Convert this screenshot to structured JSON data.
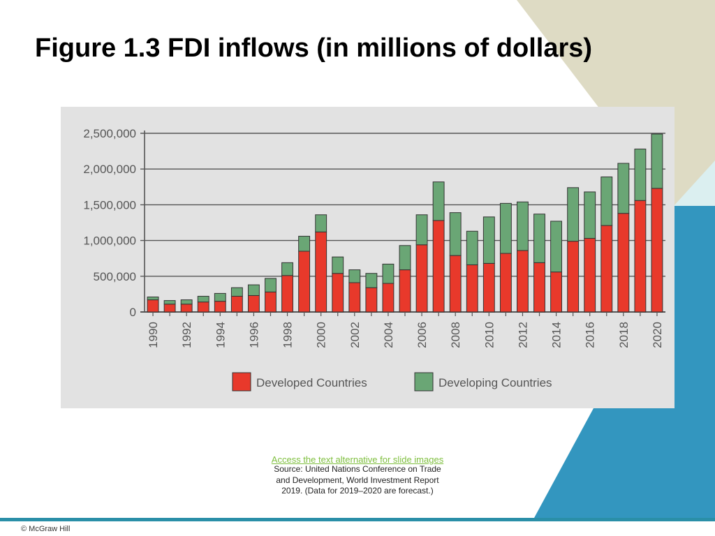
{
  "slide": {
    "title": "Figure 1.3 FDI inflows (in millions of dollars)",
    "access_link": "Access the text alternative for slide images",
    "source": "Source: United Nations Conference on Trade and Development, World Investment Report 2019. (Data for 2019–2020 are forecast.)",
    "copyright": "© McGraw Hill"
  },
  "colors": {
    "developed": "#e8392b",
    "developing": "#6aa675",
    "panel_background": "#e2e2e2",
    "tan_band": "#dedbc4",
    "light_teal": "#dbeff0",
    "blue": "#3396bf",
    "teal_bar": "#2a8fa8"
  },
  "chart_data": {
    "type": "bar",
    "stacked": true,
    "title": "",
    "xlabel": "",
    "ylabel": "",
    "ylim": [
      0,
      2500000
    ],
    "yticks": [
      0,
      500000,
      1000000,
      1500000,
      2000000,
      2500000
    ],
    "ytick_labels": [
      "0",
      "500,000",
      "1,000,000",
      "1,500,000",
      "2,000,000",
      "2,500,000"
    ],
    "grid": true,
    "legend_position": "bottom",
    "categories": [
      "1990",
      "1991",
      "1992",
      "1993",
      "1994",
      "1995",
      "1996",
      "1997",
      "1998",
      "1999",
      "2000",
      "2001",
      "2002",
      "2003",
      "2004",
      "2005",
      "2006",
      "2007",
      "2008",
      "2009",
      "2010",
      "2011",
      "2012",
      "2013",
      "2014",
      "2015",
      "2016",
      "2017",
      "2018",
      "2019",
      "2020"
    ],
    "xtick_labels": [
      "1990",
      "",
      "1992",
      "",
      "1994",
      "",
      "1996",
      "",
      "1998",
      "",
      "2000",
      "",
      "2002",
      "",
      "2004",
      "",
      "2006",
      "",
      "2008",
      "",
      "2010",
      "",
      "2012",
      "",
      "2014",
      "",
      "2016",
      "",
      "2018",
      "",
      "2020"
    ],
    "series": [
      {
        "name": "Developed Countries",
        "values": [
          170000,
          110000,
          110000,
          140000,
          150000,
          220000,
          230000,
          280000,
          510000,
          850000,
          1120000,
          540000,
          410000,
          340000,
          400000,
          590000,
          940000,
          1280000,
          790000,
          660000,
          680000,
          820000,
          860000,
          690000,
          560000,
          990000,
          1030000,
          1210000,
          1380000,
          1560000,
          1730000
        ]
      },
      {
        "name": "Developing Countries",
        "values": [
          40000,
          50000,
          60000,
          80000,
          110000,
          120000,
          150000,
          190000,
          180000,
          210000,
          240000,
          230000,
          180000,
          200000,
          270000,
          340000,
          420000,
          540000,
          600000,
          470000,
          650000,
          700000,
          680000,
          680000,
          710000,
          750000,
          650000,
          680000,
          700000,
          720000,
          760000
        ]
      }
    ]
  }
}
